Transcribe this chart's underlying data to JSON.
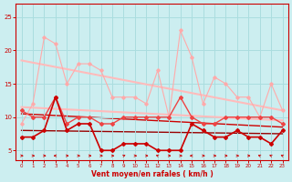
{
  "title": "",
  "xlabel": "Vent moyen/en rafales ( km/h )",
  "ylabel": "",
  "background_color": "#cceef0",
  "grid_color": "#aadddf",
  "text_color": "#cc0000",
  "xlim": [
    -0.5,
    23.5
  ],
  "ylim": [
    3.5,
    27
  ],
  "yticks": [
    5,
    10,
    15,
    20,
    25
  ],
  "xticks": [
    0,
    1,
    2,
    3,
    4,
    5,
    6,
    7,
    8,
    9,
    10,
    11,
    12,
    13,
    14,
    15,
    16,
    17,
    18,
    19,
    20,
    21,
    22,
    23
  ],
  "series": [
    {
      "x": [
        0,
        1,
        2,
        3,
        4,
        5,
        6,
        7,
        8,
        9,
        10,
        11,
        12,
        13,
        14,
        15,
        16,
        17,
        18,
        19,
        20,
        21,
        22,
        23
      ],
      "y": [
        9,
        12,
        22,
        21,
        15,
        18,
        18,
        17,
        13,
        13,
        13,
        12,
        17,
        10,
        23,
        19,
        12,
        16,
        15,
        13,
        13,
        10,
        15,
        11
      ],
      "color": "#ffaaaa",
      "linewidth": 0.8,
      "marker": "D",
      "markersize": 1.8,
      "zorder": 3
    },
    {
      "x": [
        0,
        23
      ],
      "y": [
        18.5,
        11.0
      ],
      "color": "#ffbbbb",
      "linewidth": 1.5,
      "marker": null,
      "markersize": 0,
      "zorder": 2
    },
    {
      "x": [
        0,
        23
      ],
      "y": [
        11.5,
        9.5
      ],
      "color": "#ffbbbb",
      "linewidth": 1.5,
      "marker": null,
      "markersize": 0,
      "zorder": 2
    },
    {
      "x": [
        0,
        1,
        2,
        3,
        4,
        5,
        6,
        7,
        8,
        9,
        10,
        11,
        12,
        13,
        14,
        15,
        16,
        17,
        18,
        19,
        20,
        21,
        22,
        23
      ],
      "y": [
        11,
        10,
        10,
        13,
        9,
        10,
        10,
        9,
        9,
        10,
        10,
        10,
        10,
        10,
        13,
        10,
        9,
        9,
        10,
        10,
        10,
        10,
        10,
        9
      ],
      "color": "#ee4444",
      "linewidth": 1.0,
      "marker": "D",
      "markersize": 2.0,
      "zorder": 4
    },
    {
      "x": [
        0,
        1,
        2,
        3,
        4,
        5,
        6,
        7,
        8,
        9,
        10,
        11,
        12,
        13,
        14,
        15,
        16,
        17,
        18,
        19,
        20,
        21,
        22,
        23
      ],
      "y": [
        7,
        7,
        8,
        13,
        8,
        9,
        9,
        5,
        5,
        6,
        6,
        6,
        5,
        5,
        5,
        9,
        8,
        7,
        7,
        8,
        7,
        7,
        6,
        8
      ],
      "color": "#cc0000",
      "linewidth": 1.2,
      "marker": "D",
      "markersize": 2.0,
      "zorder": 5
    },
    {
      "x": [
        0,
        23
      ],
      "y": [
        10.5,
        8.5
      ],
      "color": "#cc0000",
      "linewidth": 1.0,
      "marker": null,
      "markersize": 0,
      "zorder": 1
    },
    {
      "x": [
        0,
        23
      ],
      "y": [
        8.0,
        7.5
      ],
      "color": "#990000",
      "linewidth": 1.0,
      "marker": null,
      "markersize": 0,
      "zorder": 1
    }
  ],
  "wind_arrows": {
    "y_base": 4.2,
    "color": "#cc0000",
    "x": [
      0,
      1,
      2,
      3,
      4,
      5,
      6,
      7,
      8,
      9,
      10,
      11,
      12,
      13,
      14,
      15,
      16,
      17,
      18,
      19,
      20,
      21,
      22,
      23
    ],
    "dx": [
      0.18,
      0.18,
      0.18,
      -0.18,
      0.18,
      0.18,
      0.18,
      0.18,
      0.18,
      0.18,
      0.18,
      0.18,
      -0.18,
      0.18,
      0.18,
      -0.18,
      0.18,
      0.18,
      0.18,
      0.18,
      0.18,
      -0.18,
      -0.18,
      -0.18
    ],
    "dy": [
      0.0,
      0.0,
      0.0,
      0.0,
      0.0,
      0.0,
      0.0,
      0.0,
      0.0,
      -0.1,
      0.0,
      0.0,
      -0.1,
      0.0,
      0.0,
      0.0,
      0.0,
      0.0,
      0.0,
      0.0,
      0.0,
      -0.1,
      -0.1,
      -0.1
    ]
  }
}
